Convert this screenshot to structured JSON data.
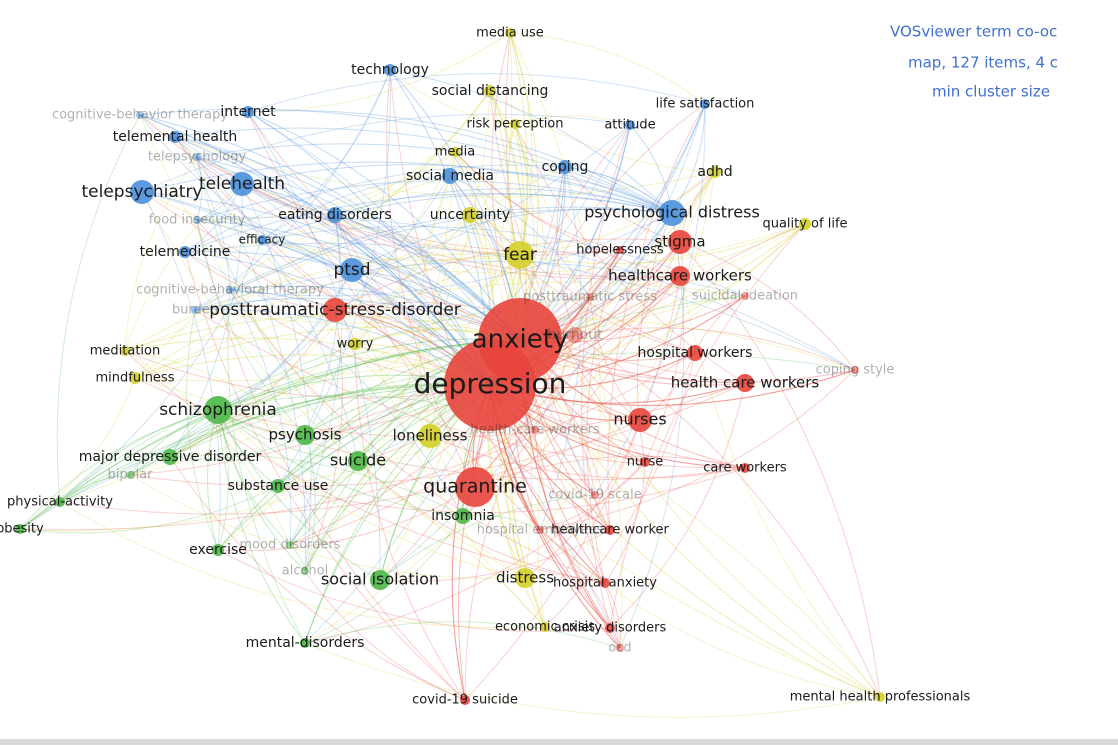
{
  "annotation": {
    "lines": [
      "VOSviewer term co-oc",
      "map, 127 items, 4 c",
      "min cluster size"
    ]
  },
  "clusters": [
    {
      "color": "#e8453c"
    },
    {
      "color": "#4cb848"
    },
    {
      "color": "#4a90dc"
    },
    {
      "color": "#d4cf2a"
    }
  ],
  "nodes": [
    {
      "label": "anxiety",
      "cluster": 0
    },
    {
      "label": "depression",
      "cluster": 0
    },
    {
      "label": "quarantine",
      "cluster": 0
    },
    {
      "label": "posttraumatic-stress-disorder",
      "cluster": 0
    },
    {
      "label": "stigma",
      "cluster": 0
    },
    {
      "label": "healthcare workers",
      "cluster": 0
    },
    {
      "label": "hospital workers",
      "cluster": 0
    },
    {
      "label": "health care workers",
      "cluster": 0
    },
    {
      "label": "nurses",
      "cluster": 0
    },
    {
      "label": "nurse",
      "cluster": 0
    },
    {
      "label": "care workers",
      "cluster": 0
    },
    {
      "label": "healthcare worker",
      "cluster": 0
    },
    {
      "label": "hospital anxiety",
      "cluster": 0
    },
    {
      "label": "anxiety disorders",
      "cluster": 0
    },
    {
      "label": "covid-19 suicide",
      "cluster": 0
    },
    {
      "label": "burnout",
      "cluster": 0,
      "faded": true
    },
    {
      "label": "hopelessness",
      "cluster": 0
    },
    {
      "label": "loneliness",
      "cluster": 3
    },
    {
      "label": "fear",
      "cluster": 3
    },
    {
      "label": "uncertainty",
      "cluster": 3
    },
    {
      "label": "adhd",
      "cluster": 3
    },
    {
      "label": "quality of life",
      "cluster": 3
    },
    {
      "label": "media use",
      "cluster": 3
    },
    {
      "label": "social distancing",
      "cluster": 3
    },
    {
      "label": "risk perception",
      "cluster": 3
    },
    {
      "label": "media",
      "cluster": 3
    },
    {
      "label": "worry",
      "cluster": 3
    },
    {
      "label": "meditation",
      "cluster": 3
    },
    {
      "label": "mindfulness",
      "cluster": 3
    },
    {
      "label": "distress",
      "cluster": 3
    },
    {
      "label": "economic crisis",
      "cluster": 3
    },
    {
      "label": "mental health professionals",
      "cluster": 3
    },
    {
      "label": "technology",
      "cluster": 2
    },
    {
      "label": "internet",
      "cluster": 2
    },
    {
      "label": "telemental health",
      "cluster": 2
    },
    {
      "label": "telepsychiatry",
      "cluster": 2
    },
    {
      "label": "telehealth",
      "cluster": 2
    },
    {
      "label": "telemedicine",
      "cluster": 2
    },
    {
      "label": "eating disorders",
      "cluster": 2
    },
    {
      "label": "efficacy",
      "cluster": 2
    },
    {
      "label": "ptsd",
      "cluster": 2
    },
    {
      "label": "social media",
      "cluster": 2
    },
    {
      "label": "coping",
      "cluster": 2
    },
    {
      "label": "attitude",
      "cluster": 2
    },
    {
      "label": "life satisfaction",
      "cluster": 2
    },
    {
      "label": "psychological distress",
      "cluster": 2
    },
    {
      "label": "schizophrenia",
      "cluster": 1
    },
    {
      "label": "psychosis",
      "cluster": 1
    },
    {
      "label": "major depressive disorder",
      "cluster": 1
    },
    {
      "label": "suicide",
      "cluster": 1
    },
    {
      "label": "substance use",
      "cluster": 1
    },
    {
      "label": "physical-activity",
      "cluster": 1
    },
    {
      "label": "obesity",
      "cluster": 1
    },
    {
      "label": "insomnia",
      "cluster": 1
    },
    {
      "label": "exercise",
      "cluster": 1
    },
    {
      "label": "social isolation",
      "cluster": 1
    },
    {
      "label": "mental-disorders",
      "cluster": 1
    },
    {
      "label": "cognitive-behavior therapy",
      "cluster": 2,
      "faded": true
    },
    {
      "label": "telepsychology",
      "cluster": 2,
      "faded": true
    },
    {
      "label": "food insecurity",
      "cluster": 2,
      "faded": true
    },
    {
      "label": "cognitive-behavioral therapy",
      "cluster": 2,
      "faded": true
    },
    {
      "label": "burden",
      "cluster": 2,
      "faded": true
    },
    {
      "label": "posttraumatic stress",
      "cluster": 0,
      "faded": true
    },
    {
      "label": "suicidal ideation",
      "cluster": 0,
      "faded": true
    },
    {
      "label": "coping style",
      "cluster": 0,
      "faded": true
    },
    {
      "label": "health-care workers",
      "cluster": 0,
      "faded": true
    },
    {
      "label": "covid-19 scale",
      "cluster": 0,
      "faded": true
    },
    {
      "label": "hospital employees",
      "cluster": 0,
      "faded": true
    },
    {
      "label": "bipolar",
      "cluster": 1,
      "faded": true
    },
    {
      "label": "mood disorders",
      "cluster": 1,
      "faded": true
    },
    {
      "label": "alcohol",
      "cluster": 1,
      "faded": true
    },
    {
      "label": "ocd",
      "cluster": 0,
      "faded": true
    }
  ]
}
